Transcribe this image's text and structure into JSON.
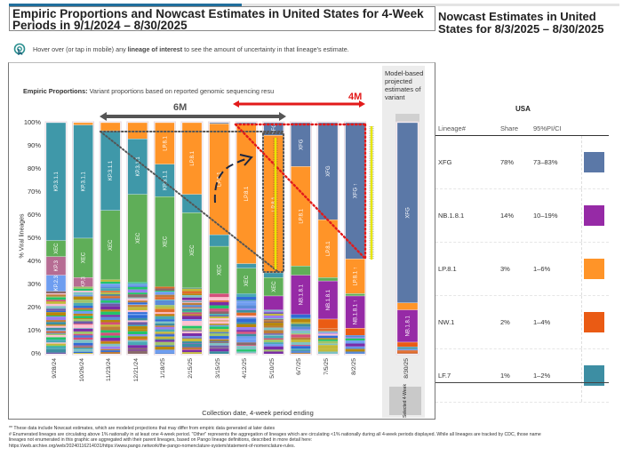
{
  "title": "Empiric Proportions and Nowcast Estimates in United States for 4-Week Periods in 9/1/2024 – 8/30/2025",
  "hover_note": {
    "pre": "Hover over (or tap in mobile) any ",
    "bold": "lineage of interest",
    "post": " to see the amount of uncertainty in that lineage's estimate.",
    "icon": "pointer-tap-icon"
  },
  "empiric_label": {
    "bold": "Empiric Proportions:",
    "text": " Variant proportions based on reported genomic sequencing resu"
  },
  "model_label": "Model-based projected estimates of variant",
  "selected_label": "Selected 4-Week",
  "annotations": {
    "six_m": "6M",
    "four_m": "4M"
  },
  "colors": {
    "KP.3.1.1": "#3f98a9",
    "XEC": "#5fae58",
    "LP.8.1": "#ff9428",
    "XFG": "#5b78a7",
    "NB.1.8.1": "#962aa6",
    "KP.3": "#b66c93",
    "KP.2.3": "#6e9df0",
    "NW.1": "#ea5b14",
    "LF.7": "#3d8ea3"
  },
  "chart_data": {
    "type": "bar",
    "stacked": true,
    "xlabel": "Collection date, 4-week period ending",
    "ylabel": "% Viral lineages",
    "ylim": [
      0,
      100
    ],
    "yticks": [
      "0%",
      "10%",
      "20%",
      "30%",
      "40%",
      "50%",
      "60%",
      "70%",
      "80%",
      "90%",
      "100%"
    ],
    "categories": [
      "9/28/24",
      "10/26/24",
      "11/23/24",
      "12/21/24",
      "1/18/25",
      "2/15/25",
      "3/15/25",
      "4/12/25",
      "5/10/25",
      "6/7/25",
      "7/5/25",
      "8/2/25"
    ],
    "bars": [
      [
        {
          "l": "KP.3.1.1",
          "v": 51,
          "t": "KP.3.1.1"
        },
        {
          "l": "XEC",
          "v": 7,
          "t": "XEC"
        },
        {
          "l": "KP.3",
          "v": 8,
          "t": "KP.3"
        },
        {
          "l": "KP.2.3",
          "v": 7,
          "t": "KP.2.3"
        },
        {
          "l": "Other",
          "v": 27
        }
      ],
      [
        {
          "l": "LP.8.1",
          "v": 1
        },
        {
          "l": "KP.3.1.1",
          "v": 49,
          "t": "KP.3.1.1"
        },
        {
          "l": "XEC",
          "v": 17,
          "t": "XEC"
        },
        {
          "l": "KP.3",
          "v": 4,
          "t": "KP.3"
        },
        {
          "l": "Other",
          "v": 29
        }
      ],
      [
        {
          "l": "LP.8.1",
          "v": 3.5
        },
        {
          "l": "KP.3.1.1",
          "v": 34.5,
          "t": "KP.3.1.1"
        },
        {
          "l": "XEC",
          "v": 30,
          "t": "XEC"
        },
        {
          "l": "Other",
          "v": 32
        }
      ],
      [
        {
          "l": "LP.8.1",
          "v": 7
        },
        {
          "l": "KP.3.1.1",
          "v": 24,
          "t": "KP.3.1.1"
        },
        {
          "l": "XEC",
          "v": 38,
          "t": "XEC"
        },
        {
          "l": "Other",
          "v": 31
        }
      ],
      [
        {
          "l": "LP.8.1",
          "v": 18,
          "t": "LP.8.1"
        },
        {
          "l": "KP.3.1.1",
          "v": 14,
          "t": "KP.3.1.1"
        },
        {
          "l": "XEC",
          "v": 39,
          "t": "XEC"
        },
        {
          "l": "Other",
          "v": 29
        }
      ],
      [
        {
          "l": "LP.8.1",
          "v": 31,
          "t": "LP.8.1"
        },
        {
          "l": "KP.3.1.1",
          "v": 8
        },
        {
          "l": "XEC",
          "v": 32.5,
          "t": "XEC"
        },
        {
          "l": "Other",
          "v": 28.5
        }
      ],
      [
        {
          "l": "XFG",
          "v": 0.5
        },
        {
          "l": "LP.8.1",
          "v": 48,
          "t": "LP.8.1"
        },
        {
          "l": "KP.3.1.1",
          "v": 5
        },
        {
          "l": "XEC",
          "v": 20.5,
          "t": "XEC"
        },
        {
          "l": "Other",
          "v": 26
        }
      ],
      [
        {
          "l": "XFG",
          "v": 0.5
        },
        {
          "l": "LP.8.1",
          "v": 60.5,
          "t": "LP.8.1"
        },
        {
          "l": "KP.3.1.1",
          "v": 2
        },
        {
          "l": "XEC",
          "v": 11,
          "t": "XEC"
        },
        {
          "l": "Other",
          "v": 26
        }
      ],
      [
        {
          "l": "XFG",
          "v": 5.5,
          "t": "XFG"
        },
        {
          "l": "LP.8.1",
          "v": 59.5,
          "t": "LP.8.1"
        },
        {
          "l": "KP.3.1.1",
          "v": 2
        },
        {
          "l": "XEC",
          "v": 8,
          "t": "XEC"
        },
        {
          "l": "NB.1.8.1",
          "v": 6
        },
        {
          "l": "Other",
          "v": 19
        }
      ],
      [
        {
          "l": "XFG",
          "v": 19,
          "t": "XFG"
        },
        {
          "l": "LP.8.1",
          "v": 43,
          "t": "LP.8.1"
        },
        {
          "l": "XEC",
          "v": 4
        },
        {
          "l": "NB.1.8.1",
          "v": 17,
          "t": "NB.1.8.1"
        },
        {
          "l": "Other",
          "v": 17
        }
      ],
      [
        {
          "l": "XFG",
          "v": 42,
          "t": "XFG"
        },
        {
          "l": "LP.8.1",
          "v": 25,
          "t": "LP.8.1"
        },
        {
          "l": "XEC",
          "v": 1.5
        },
        {
          "l": "NB.1.8.1",
          "v": 16.5,
          "t": "NB.1.8.1"
        },
        {
          "l": "NW.1",
          "v": 4
        },
        {
          "l": "Other",
          "v": 11
        }
      ],
      [
        {
          "l": "XFG",
          "v": 59,
          "t": "XFG ↑"
        },
        {
          "l": "LP.8.1",
          "v": 15,
          "t": "LP.8.1 ↑"
        },
        {
          "l": "XEC",
          "v": 1
        },
        {
          "l": "NB.1.8.1",
          "v": 14,
          "t": "NB.1.8.1 ↑"
        },
        {
          "l": "NW.1",
          "v": 3
        },
        {
          "l": "Other",
          "v": 8
        }
      ]
    ],
    "nowcast": {
      "category": "8/30/25",
      "segments": [
        {
          "l": "XFG",
          "v": 78,
          "t": "XFG"
        },
        {
          "l": "LP.8.1",
          "v": 3
        },
        {
          "l": "NB.1.8.1",
          "v": 14,
          "t": "NB.1.8.1"
        },
        {
          "l": "NW.1",
          "v": 2
        },
        {
          "l": "LF.7",
          "v": 1
        },
        {
          "l": "Other",
          "v": 2
        }
      ]
    }
  },
  "nowcast_table": {
    "title": "Nowcast Estimates in United States for 8/3/2025 – 8/30/2025",
    "region": "USA",
    "headers": [
      "Lineage#",
      "Share",
      "95%PI/CI"
    ],
    "rows": [
      {
        "lineage": "XFG",
        "share": "78%",
        "ci": "73–83%",
        "color": "#5b78a7"
      },
      {
        "lineage": "NB.1.8.1",
        "share": "14%",
        "ci": "10–19%",
        "color": "#962aa6"
      },
      {
        "lineage": "LP.8.1",
        "share": "3%",
        "ci": "1–6%",
        "color": "#ff9428"
      },
      {
        "lineage": "NW.1",
        "share": "2%",
        "ci": "1–4%",
        "color": "#ea5b14"
      },
      {
        "lineage": "LF.7",
        "share": "1%",
        "ci": "1–2%",
        "color": "#3d8ea3"
      }
    ]
  },
  "footer": [
    "**     These data include Nowcast estimates, which are modeled projections that may differ from empiric data generated at later dates",
    "# Enumerated lineages are circulating above 1% nationally in at least one 4-week period. \"Other\" represents the aggregation of lineages which are circulating <1% nationally during all 4-week periods displayed.  While all lineages are tracked by CDC, those name",
    "lineages not enumerated in this graphic are aggregated with their parent lineages, based on Pango lineage definitions, described in more detail here:",
    "https://web.archive.org/web/20240116214031/https://www.pango.network/the-pango-nomenclature-system/statement-of-nomenclature-rules."
  ]
}
